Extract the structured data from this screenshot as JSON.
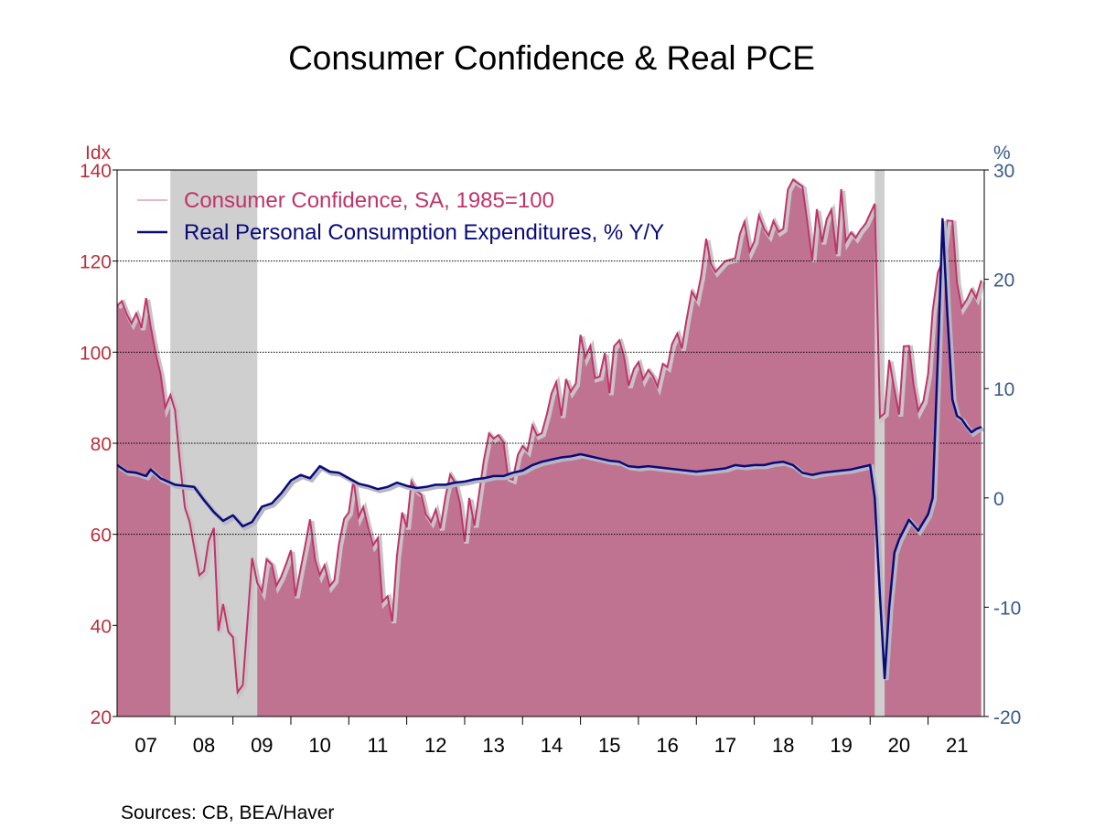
{
  "chart_data": {
    "type": "area",
    "title": "Consumer Confidence & Real PCE",
    "source": "Sources:  CB, BEA/Haver",
    "y_left": {
      "unit": "Idx",
      "ylim": [
        20,
        140
      ],
      "ticks": [
        20,
        40,
        60,
        80,
        100,
        120,
        140
      ],
      "tick_labels": [
        "20",
        "40",
        "60",
        "80",
        "100",
        "120",
        "140"
      ]
    },
    "y_right": {
      "unit": "%",
      "ylim": [
        -20,
        30
      ],
      "ticks": [
        -20,
        -10,
        0,
        10,
        20,
        30
      ],
      "tick_labels": [
        "-20",
        "-10",
        "0",
        "10",
        "20",
        "30"
      ]
    },
    "x_labels": [
      "07",
      "08",
      "09",
      "10",
      "11",
      "12",
      "13",
      "14",
      "15",
      "16",
      "17",
      "18",
      "19",
      "20",
      "21"
    ],
    "x_years": [
      2007,
      2008,
      2009,
      2010,
      2011,
      2012,
      2013,
      2014,
      2015,
      2016,
      2017,
      2018,
      2019,
      2020,
      2021
    ],
    "x_range": [
      2007.0,
      2021.97
    ],
    "gridlines_left": [
      60,
      80,
      100,
      120
    ],
    "recessions": [
      [
        2007.92,
        2009.42
      ],
      [
        2020.08,
        2020.25
      ]
    ],
    "legend": [
      {
        "label": "Consumer Confidence, SA, 1985=100",
        "color": "#c0346a"
      },
      {
        "label": "Real Personal Consumption Expenditures, % Y/Y",
        "color": "#0a0a7a"
      }
    ],
    "series": [
      {
        "name": "Consumer Confidence, SA, 1985=100",
        "axis": "left",
        "color": "#c0346a",
        "fill": "#c07391",
        "x": [
          2007.0,
          2007.08,
          2007.17,
          2007.25,
          2007.33,
          2007.42,
          2007.5,
          2007.58,
          2007.67,
          2007.75,
          2007.83,
          2007.92,
          2008.0,
          2008.08,
          2008.17,
          2008.25,
          2008.33,
          2008.42,
          2008.5,
          2008.58,
          2008.67,
          2008.75,
          2008.83,
          2008.92,
          2009.0,
          2009.08,
          2009.17,
          2009.25,
          2009.33,
          2009.42,
          2009.5,
          2009.58,
          2009.67,
          2009.75,
          2009.83,
          2009.92,
          2010.0,
          2010.08,
          2010.17,
          2010.25,
          2010.33,
          2010.42,
          2010.5,
          2010.58,
          2010.67,
          2010.75,
          2010.83,
          2010.92,
          2011.0,
          2011.08,
          2011.17,
          2011.25,
          2011.33,
          2011.42,
          2011.5,
          2011.58,
          2011.67,
          2011.75,
          2011.83,
          2011.92,
          2012.0,
          2012.08,
          2012.17,
          2012.25,
          2012.33,
          2012.42,
          2012.5,
          2012.58,
          2012.67,
          2012.75,
          2012.83,
          2012.92,
          2013.0,
          2013.08,
          2013.17,
          2013.25,
          2013.33,
          2013.42,
          2013.5,
          2013.58,
          2013.67,
          2013.75,
          2013.83,
          2013.92,
          2014.0,
          2014.08,
          2014.17,
          2014.25,
          2014.33,
          2014.42,
          2014.5,
          2014.58,
          2014.67,
          2014.75,
          2014.83,
          2014.92,
          2015.0,
          2015.08,
          2015.17,
          2015.25,
          2015.33,
          2015.42,
          2015.5,
          2015.58,
          2015.67,
          2015.75,
          2015.83,
          2015.92,
          2016.0,
          2016.08,
          2016.17,
          2016.25,
          2016.33,
          2016.42,
          2016.5,
          2016.58,
          2016.67,
          2016.75,
          2016.83,
          2016.92,
          2017.0,
          2017.08,
          2017.17,
          2017.25,
          2017.33,
          2017.42,
          2017.5,
          2017.58,
          2017.67,
          2017.75,
          2017.83,
          2017.92,
          2018.0,
          2018.08,
          2018.17,
          2018.25,
          2018.33,
          2018.42,
          2018.5,
          2018.58,
          2018.67,
          2018.75,
          2018.83,
          2018.92,
          2019.0,
          2019.08,
          2019.17,
          2019.25,
          2019.33,
          2019.42,
          2019.5,
          2019.58,
          2019.67,
          2019.75,
          2019.83,
          2019.92,
          2020.0,
          2020.08,
          2020.17,
          2020.25,
          2020.33,
          2020.42,
          2020.5,
          2020.58,
          2020.67,
          2020.75,
          2020.83,
          2020.92,
          2021.0,
          2021.08,
          2021.17,
          2021.25,
          2021.33,
          2021.42,
          2021.5,
          2021.58,
          2021.67,
          2021.75,
          2021.83,
          2021.92
        ],
        "values": [
          110.2,
          111.2,
          108.2,
          106.3,
          108.5,
          105.3,
          111.9,
          105.6,
          99.5,
          95.2,
          87.8,
          90.6,
          87.3,
          76.4,
          65.9,
          62.8,
          57.2,
          51.0,
          51.9,
          58.5,
          61.4,
          38.8,
          44.7,
          38.6,
          37.4,
          25.3,
          26.9,
          40.8,
          54.8,
          49.3,
          47.4,
          54.5,
          53.4,
          48.7,
          50.6,
          53.6,
          56.5,
          46.4,
          52.5,
          57.7,
          63.3,
          54.3,
          51.0,
          53.2,
          48.6,
          49.9,
          57.8,
          63.4,
          64.8,
          72.0,
          63.8,
          66.0,
          61.7,
          57.6,
          59.2,
          45.2,
          46.4,
          40.9,
          55.2,
          64.8,
          61.5,
          71.6,
          69.5,
          68.7,
          64.4,
          62.7,
          65.4,
          61.3,
          68.4,
          73.1,
          71.5,
          66.7,
          58.4,
          68.0,
          61.9,
          69.0,
          76.2,
          82.1,
          81.0,
          81.8,
          80.2,
          72.4,
          72.0,
          77.5,
          79.4,
          78.3,
          83.9,
          81.7,
          82.2,
          86.4,
          90.9,
          93.4,
          86.0,
          94.1,
          91.3,
          93.1,
          103.8,
          98.8,
          101.4,
          94.3,
          94.6,
          99.8,
          91.0,
          101.3,
          102.6,
          99.1,
          92.6,
          96.3,
          97.8,
          94.0,
          96.1,
          94.7,
          92.4,
          97.4,
          96.7,
          101.8,
          104.1,
          100.8,
          107.1,
          113.3,
          111.6,
          116.5,
          124.9,
          119.4,
          117.6,
          118.9,
          120.0,
          120.3,
          120.6,
          125.9,
          128.6,
          122.1,
          124.3,
          130.0,
          127.0,
          125.6,
          128.8,
          126.4,
          127.1,
          135.7,
          137.9,
          137.1,
          136.4,
          128.1,
          120.2,
          131.4,
          124.1,
          129.2,
          131.3,
          121.5,
          135.8,
          124.3,
          126.3,
          125.1,
          126.8,
          128.2,
          130.4,
          132.6,
          85.7,
          86.6,
          98.3,
          91.7,
          86.3,
          101.3,
          101.4,
          92.9,
          87.1,
          89.3,
          95.2,
          109.0,
          117.5,
          120.0,
          128.9,
          128.8,
          115.2,
          109.8,
          111.6,
          113.8,
          111.9,
          115.8
        ]
      },
      {
        "name": "Real Personal Consumption Expenditures, % Y/Y",
        "axis": "right",
        "color": "#0a0a7a",
        "x": [
          2007.0,
          2007.17,
          2007.33,
          2007.5,
          2007.58,
          2007.75,
          2008.0,
          2008.17,
          2008.33,
          2008.5,
          2008.67,
          2008.83,
          2009.0,
          2009.17,
          2009.33,
          2009.5,
          2009.67,
          2009.83,
          2010.0,
          2010.17,
          2010.33,
          2010.5,
          2010.67,
          2010.83,
          2011.0,
          2011.17,
          2011.33,
          2011.5,
          2011.67,
          2011.83,
          2012.0,
          2012.17,
          2012.33,
          2012.5,
          2012.67,
          2012.83,
          2013.0,
          2013.17,
          2013.33,
          2013.5,
          2013.67,
          2013.83,
          2014.0,
          2014.17,
          2014.33,
          2014.5,
          2014.67,
          2014.83,
          2015.0,
          2015.17,
          2015.33,
          2015.5,
          2015.67,
          2015.83,
          2016.0,
          2016.17,
          2016.33,
          2016.5,
          2016.67,
          2016.83,
          2017.0,
          2017.17,
          2017.33,
          2017.5,
          2017.67,
          2017.83,
          2018.0,
          2018.17,
          2018.33,
          2018.5,
          2018.67,
          2018.83,
          2019.0,
          2019.17,
          2019.33,
          2019.5,
          2019.67,
          2019.83,
          2020.0,
          2020.08,
          2020.17,
          2020.25,
          2020.33,
          2020.42,
          2020.5,
          2020.67,
          2020.83,
          2021.0,
          2021.08,
          2021.17,
          2021.25,
          2021.33,
          2021.42,
          2021.5,
          2021.58,
          2021.67,
          2021.75,
          2021.83,
          2021.92
        ],
        "values": [
          3.0,
          2.4,
          2.3,
          2.0,
          2.6,
          1.8,
          1.2,
          1.1,
          1.0,
          -0.2,
          -1.3,
          -2.1,
          -1.6,
          -2.6,
          -2.2,
          -0.8,
          -0.5,
          0.4,
          1.6,
          2.1,
          1.8,
          2.9,
          2.4,
          2.3,
          1.8,
          1.3,
          1.1,
          0.8,
          1.0,
          1.4,
          1.1,
          0.9,
          1.0,
          1.2,
          1.2,
          1.4,
          1.5,
          1.7,
          1.8,
          2.0,
          2.0,
          2.3,
          2.5,
          3.0,
          3.3,
          3.5,
          3.7,
          3.8,
          4.0,
          3.8,
          3.6,
          3.4,
          3.3,
          2.9,
          2.8,
          2.9,
          2.8,
          2.7,
          2.6,
          2.5,
          2.4,
          2.5,
          2.6,
          2.7,
          3.0,
          2.9,
          3.0,
          3.0,
          3.2,
          3.3,
          3.0,
          2.3,
          2.1,
          2.3,
          2.4,
          2.5,
          2.6,
          2.8,
          3.0,
          0.0,
          -9.0,
          -16.5,
          -10.0,
          -5.0,
          -3.8,
          -2.0,
          -3.0,
          -1.5,
          0.0,
          13.0,
          25.5,
          17.0,
          9.0,
          7.5,
          7.2,
          6.5,
          6.0,
          6.3,
          6.5
        ]
      }
    ]
  }
}
